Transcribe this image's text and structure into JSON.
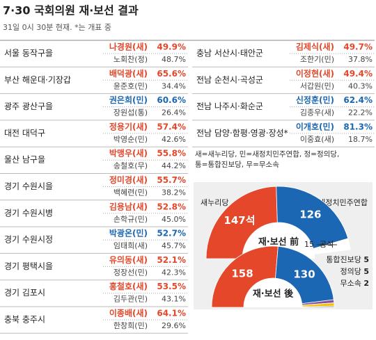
{
  "header": {
    "title": "7·30 국회의원 재·보선 결과",
    "subtitle": "31일 0시 30분 현재. *는 개표 중"
  },
  "districts": [
    {
      "name": "서울 동작구을",
      "winner": {
        "name": "나경원(새)",
        "pct": "49.9%",
        "color": "#e4472a"
      },
      "runner": {
        "name": "노회찬(정)",
        "pct": "48.7%"
      }
    },
    {
      "name": "부산 해운대·기장갑",
      "winner": {
        "name": "배덕광(새)",
        "pct": "65.6%",
        "color": "#e4472a"
      },
      "runner": {
        "name": "윤준호(민)",
        "pct": "34.4%"
      }
    },
    {
      "name": "광주 광산구을",
      "winner": {
        "name": "권은희(민)",
        "pct": "60.6%",
        "color": "#1b67b3"
      },
      "runner": {
        "name": "장원섭(통)",
        "pct": "26.4%"
      }
    },
    {
      "name": "대전 대덕구",
      "winner": {
        "name": "정용기(새)",
        "pct": "57.4%",
        "color": "#e4472a"
      },
      "runner": {
        "name": "박영순(민)",
        "pct": "42.6%"
      }
    },
    {
      "name": "울산 남구을",
      "winner": {
        "name": "박맹우(새)",
        "pct": "55.8%",
        "color": "#e4472a"
      },
      "runner": {
        "name": "송철호(무)",
        "pct": "44.2%"
      }
    },
    {
      "name": "경기 수원시을",
      "winner": {
        "name": "정미경(새)",
        "pct": "55.7%",
        "color": "#e4472a"
      },
      "runner": {
        "name": "백혜련(민)",
        "pct": "38.2%"
      }
    },
    {
      "name": "경기 수원시병",
      "winner": {
        "name": "김용남(새)",
        "pct": "52.8%",
        "color": "#e4472a"
      },
      "runner": {
        "name": "손학규(민)",
        "pct": "45.0%"
      }
    },
    {
      "name": "경기 수원시정",
      "winner": {
        "name": "박광온(민)",
        "pct": "52.7%",
        "color": "#1b67b3"
      },
      "runner": {
        "name": "임태희(새)",
        "pct": "45.7%"
      }
    },
    {
      "name": "경기 평택시을",
      "winner": {
        "name": "유의동(새)",
        "pct": "52.1%",
        "color": "#e4472a"
      },
      "runner": {
        "name": "정장선(민)",
        "pct": "42.3%"
      }
    },
    {
      "name": "경기 김포시",
      "winner": {
        "name": "홍철호(새)",
        "pct": "53.5%",
        "color": "#e4472a"
      },
      "runner": {
        "name": "김두관(민)",
        "pct": "43.1%"
      }
    },
    {
      "name": "충북 충주시",
      "winner": {
        "name": "이종배(새)",
        "pct": "64.1%",
        "color": "#e4472a"
      },
      "runner": {
        "name": "한창희(민)",
        "pct": "29.6%"
      }
    },
    {
      "name": "충남 서산시·태안군",
      "winner": {
        "name": "김제식(새)",
        "pct": "49.7%",
        "color": "#e4472a"
      },
      "runner": {
        "name": "조한기(민)",
        "pct": "37.8%"
      }
    },
    {
      "name": "전남 순천시·곡성군",
      "winner": {
        "name": "이정현(새)",
        "pct": "49.4%",
        "color": "#e4472a"
      },
      "runner": {
        "name": "서갑원(민)",
        "pct": "40.3%"
      }
    },
    {
      "name": "전남 나주시·화순군",
      "winner": {
        "name": "신정훈(민)",
        "pct": "62.4%",
        "color": "#1b67b3"
      },
      "runner": {
        "name": "김종우(새)",
        "pct": "22.2%"
      }
    },
    {
      "name": "전남 담양·함평·영광·장성*",
      "winner": {
        "name": "이개호(민)",
        "pct": "81.3%",
        "color": "#1b67b3"
      },
      "runner": {
        "name": "이중효(새)",
        "pct": "18.7%"
      }
    }
  ],
  "note": [
    "새=새누리당, 민=새정치민주연합, 정=정의당,",
    "통=통합진보당, 무=무소속"
  ],
  "chart_data": {
    "type": "semicircle",
    "left_label": "새누리당",
    "right_label": "새정치민주연합",
    "before": {
      "label": "재·보선 前",
      "segments": [
        {
          "value": 147,
          "value_label": "147석",
          "color": "#e4472a"
        },
        {
          "value": 126,
          "color": "#1b67b3"
        },
        {
          "value": 15,
          "name": "공석",
          "color": "#ffffff"
        }
      ]
    },
    "after": {
      "label": "재·보선 後",
      "segments": [
        {
          "value": 158,
          "color": "#e4472a"
        },
        {
          "value": 130,
          "color": "#1b67b3"
        },
        {
          "value": 5,
          "name": "통합진보당",
          "color": "#8a4fa0"
        },
        {
          "value": 5,
          "name": "정의당",
          "color": "#f2c200"
        },
        {
          "value": 2,
          "name": "무소속",
          "color": "#999999"
        }
      ]
    }
  }
}
